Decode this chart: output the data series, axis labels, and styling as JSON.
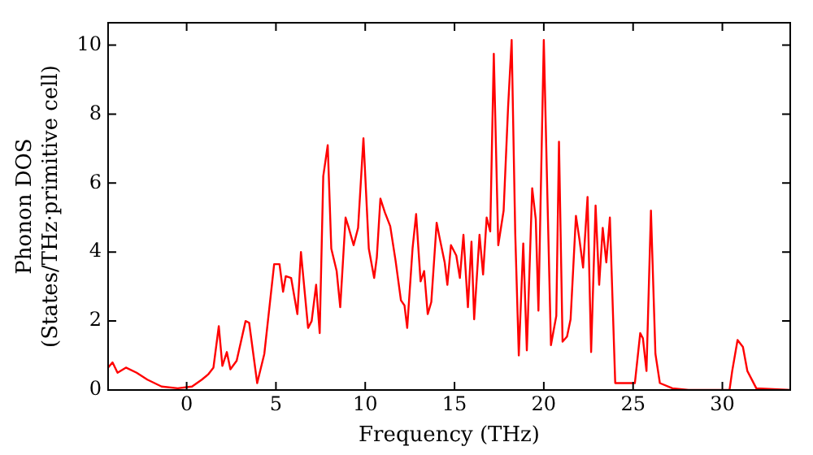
{
  "chart_data": {
    "type": "line",
    "xlabel": "Frequency (THz)",
    "ylabel": "Phonon DOS\n(States/THz·primitive cell)",
    "xlim": [
      -4.4,
      33.8
    ],
    "ylim": [
      0,
      10.65
    ],
    "xticks": [
      0,
      5,
      10,
      15,
      20,
      25,
      30
    ],
    "yticks": [
      0,
      2,
      4,
      6,
      8,
      10
    ],
    "grid": false,
    "legend": false,
    "marker": "none",
    "line_style": "solid",
    "series": [
      {
        "color": "#ff0000",
        "x": [
          -4.4,
          -4.15,
          -3.87,
          -3.4,
          -2.8,
          -2.2,
          -1.4,
          -0.5,
          0.3,
          0.85,
          1.2,
          1.5,
          1.8,
          2.0,
          2.25,
          2.45,
          2.8,
          3.3,
          3.5,
          3.95,
          4.35,
          4.9,
          5.2,
          5.4,
          5.55,
          5.85,
          6.2,
          6.4,
          6.8,
          7.0,
          7.25,
          7.45,
          7.65,
          7.9,
          8.1,
          8.4,
          8.6,
          8.9,
          9.05,
          9.35,
          9.6,
          9.9,
          10.2,
          10.5,
          10.65,
          10.85,
          11.1,
          11.4,
          11.7,
          12.0,
          12.2,
          12.35,
          12.65,
          12.85,
          13.1,
          13.3,
          13.5,
          13.7,
          14.0,
          14.15,
          14.45,
          14.6,
          14.8,
          15.1,
          15.3,
          15.5,
          15.75,
          15.95,
          16.1,
          16.4,
          16.6,
          16.8,
          17.0,
          17.2,
          17.45,
          17.75,
          18.0,
          18.2,
          18.4,
          18.6,
          18.85,
          19.05,
          19.35,
          19.55,
          19.7,
          20.0,
          20.2,
          20.4,
          20.7,
          20.85,
          21.05,
          21.3,
          21.5,
          21.8,
          22.0,
          22.2,
          22.45,
          22.65,
          22.9,
          23.1,
          23.3,
          23.5,
          23.7,
          24.0,
          24.35,
          25.1,
          25.4,
          25.55,
          25.75,
          26.0,
          26.25,
          26.5,
          27.2,
          28.1,
          30.4,
          30.55,
          30.85,
          31.15,
          31.4,
          31.9,
          33.8
        ],
        "values": [
          0.65,
          0.8,
          0.5,
          0.65,
          0.5,
          0.3,
          0.1,
          0.05,
          0.1,
          0.3,
          0.45,
          0.65,
          1.85,
          0.7,
          1.1,
          0.6,
          0.85,
          2.0,
          1.95,
          0.2,
          1.05,
          3.65,
          3.65,
          2.85,
          3.3,
          3.25,
          2.2,
          4.0,
          1.8,
          2.0,
          3.05,
          1.65,
          6.2,
          7.1,
          4.1,
          3.45,
          2.4,
          5.0,
          4.75,
          4.2,
          4.7,
          7.3,
          4.1,
          3.25,
          3.85,
          5.55,
          5.15,
          4.75,
          3.75,
          2.6,
          2.45,
          1.8,
          4.1,
          5.1,
          3.15,
          3.45,
          2.2,
          2.55,
          4.85,
          4.45,
          3.7,
          3.05,
          4.2,
          3.9,
          3.25,
          4.5,
          2.4,
          4.3,
          2.05,
          4.5,
          3.35,
          5.0,
          4.6,
          9.75,
          4.2,
          5.2,
          8.2,
          10.15,
          4.55,
          1.0,
          4.25,
          1.15,
          5.85,
          4.95,
          2.3,
          10.15,
          5.65,
          1.3,
          2.15,
          7.2,
          1.4,
          1.55,
          2.05,
          5.05,
          4.35,
          3.55,
          5.6,
          1.1,
          5.35,
          3.05,
          4.7,
          3.7,
          5.0,
          0.2,
          0.2,
          0.2,
          1.65,
          1.5,
          0.55,
          5.2,
          1.05,
          0.2,
          0.05,
          0,
          0,
          0.55,
          1.45,
          1.25,
          0.55,
          0.05,
          0
        ]
      }
    ]
  }
}
